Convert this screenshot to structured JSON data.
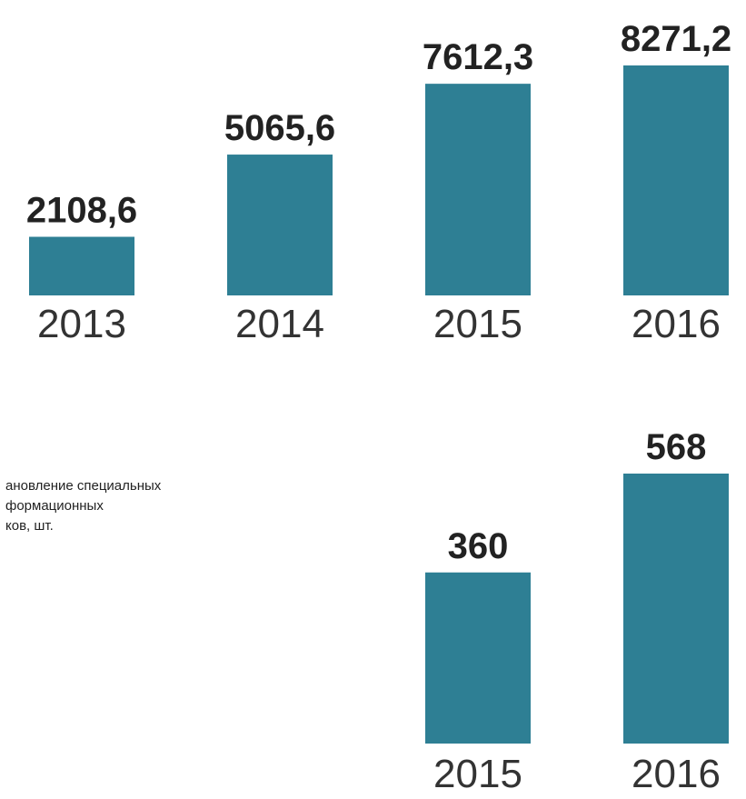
{
  "chart_data": [
    {
      "type": "bar",
      "categories": [
        "2013",
        "2014",
        "2015",
        "2016"
      ],
      "values": [
        2108.6,
        5065.6,
        7612.3,
        8271.2
      ],
      "value_labels": [
        "2108,6",
        "5065,6",
        "7612,3",
        "8271,2"
      ],
      "color": "#2e7f94"
    },
    {
      "type": "bar",
      "title": [
        "ановление специальных",
        "формационных",
        "ков, шт."
      ],
      "categories": [
        "2015",
        "2016"
      ],
      "values": [
        360,
        568
      ],
      "color": "#2e7f94"
    }
  ]
}
